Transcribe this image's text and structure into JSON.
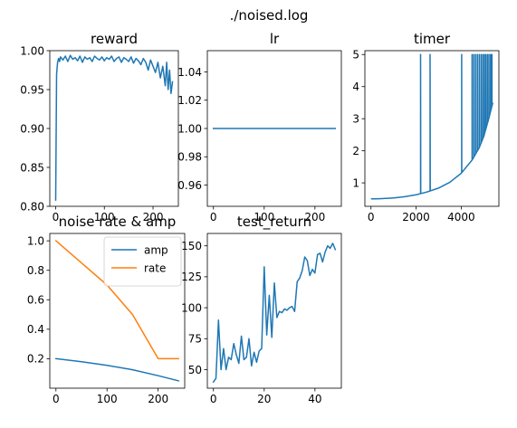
{
  "figure_title": "./noised.log",
  "chart_data": [
    {
      "id": "reward",
      "type": "line",
      "title": "reward",
      "xlim": [
        -12,
        252
      ],
      "ylim": [
        0.8,
        1.0
      ],
      "xticks": [
        0,
        100,
        200
      ],
      "yticks": [
        0.8,
        0.85,
        0.9,
        0.95,
        1.0
      ],
      "ytick_labels": [
        "0.80",
        "0.85",
        "0.90",
        "0.95",
        "1.00"
      ],
      "series": [
        {
          "color": "#1f77b4",
          "x": [
            0,
            2,
            4,
            6,
            8,
            10,
            15,
            20,
            25,
            30,
            35,
            40,
            45,
            50,
            55,
            60,
            65,
            70,
            75,
            80,
            85,
            90,
            95,
            100,
            105,
            110,
            115,
            120,
            125,
            130,
            135,
            140,
            145,
            150,
            155,
            160,
            165,
            170,
            175,
            180,
            185,
            190,
            195,
            200,
            205,
            210,
            215,
            220,
            225,
            228,
            231,
            234,
            237,
            240
          ],
          "y": [
            0.808,
            0.97,
            0.985,
            0.99,
            0.986,
            0.992,
            0.988,
            0.993,
            0.986,
            0.994,
            0.989,
            0.991,
            0.987,
            0.993,
            0.985,
            0.992,
            0.989,
            0.991,
            0.986,
            0.993,
            0.99,
            0.988,
            0.992,
            0.987,
            0.991,
            0.989,
            0.993,
            0.986,
            0.99,
            0.992,
            0.985,
            0.991,
            0.989,
            0.986,
            0.992,
            0.984,
            0.99,
            0.987,
            0.982,
            0.99,
            0.985,
            0.975,
            0.988,
            0.98,
            0.972,
            0.985,
            0.965,
            0.98,
            0.955,
            0.985,
            0.95,
            0.975,
            0.945,
            0.96
          ]
        }
      ]
    },
    {
      "id": "lr",
      "type": "line",
      "title": "lr",
      "xlim": [
        -12,
        252
      ],
      "ylim": [
        0.945,
        1.055
      ],
      "xticks": [
        0,
        100,
        200
      ],
      "yticks": [
        0.96,
        0.98,
        1.0,
        1.02,
        1.04
      ],
      "ytick_labels": [
        "0.96",
        "0.98",
        "1.00",
        "1.02",
        "1.04"
      ],
      "series": [
        {
          "color": "#1f77b4",
          "x": [
            0,
            240
          ],
          "y": [
            1.0,
            1.0
          ]
        }
      ]
    },
    {
      "id": "timer",
      "type": "line",
      "title": "timer",
      "xlim": [
        -270,
        5670
      ],
      "ylim": [
        0.27,
        5.12
      ],
      "xticks": [
        0,
        2000,
        4000
      ],
      "yticks": [
        1,
        2,
        3,
        4,
        5
      ],
      "ytick_labels": [
        "1",
        "2",
        "3",
        "4",
        "5"
      ],
      "curve_points": [
        [
          0,
          0.5
        ],
        [
          500,
          0.51
        ],
        [
          1000,
          0.53
        ],
        [
          1500,
          0.57
        ],
        [
          2000,
          0.63
        ],
        [
          2500,
          0.72
        ],
        [
          3000,
          0.84
        ],
        [
          3500,
          1.02
        ],
        [
          4000,
          1.3
        ],
        [
          4500,
          1.73
        ],
        [
          4800,
          2.1
        ],
        [
          5000,
          2.45
        ],
        [
          5200,
          2.95
        ],
        [
          5400,
          3.5
        ]
      ],
      "spikes": [
        2200,
        2620,
        4020,
        4480,
        4560,
        4640,
        4720,
        4800,
        4880,
        4950,
        5020,
        5090,
        5160,
        5230,
        5300,
        5360
      ],
      "spike_value": 5.0,
      "color": "#1f77b4"
    },
    {
      "id": "noise",
      "type": "line",
      "title": "noise rate & amp",
      "xlim": [
        -12,
        252
      ],
      "ylim": [
        0.0,
        1.05
      ],
      "xticks": [
        0,
        100,
        200
      ],
      "yticks": [
        0.2,
        0.4,
        0.6,
        0.8,
        1.0
      ],
      "ytick_labels": [
        "0.2",
        "0.4",
        "0.6",
        "0.8",
        "1.0"
      ],
      "legend_position": "top-right",
      "series": [
        {
          "name": "amp",
          "color": "#1f77b4",
          "x": [
            0,
            50,
            100,
            150,
            200,
            240
          ],
          "y": [
            0.2,
            0.18,
            0.155,
            0.125,
            0.085,
            0.05
          ]
        },
        {
          "name": "rate",
          "color": "#ff7f0e",
          "x": [
            0,
            50,
            100,
            150,
            200,
            240
          ],
          "y": [
            1.0,
            0.85,
            0.7,
            0.5,
            0.2,
            0.2
          ]
        }
      ]
    },
    {
      "id": "test_return",
      "type": "line",
      "title": "test_return",
      "xlim": [
        -2.4,
        50.4
      ],
      "ylim": [
        35,
        160
      ],
      "xticks": [
        0,
        20,
        40
      ],
      "yticks": [
        50,
        75,
        100,
        125,
        150
      ],
      "ytick_labels": [
        "50",
        "75",
        "100",
        "125",
        "150"
      ],
      "series": [
        {
          "color": "#1f77b4",
          "x": [
            0,
            1,
            2,
            3,
            4,
            5,
            6,
            7,
            8,
            9,
            10,
            11,
            12,
            13,
            14,
            15,
            16,
            17,
            18,
            19,
            20,
            21,
            22,
            23,
            24,
            25,
            26,
            27,
            28,
            29,
            30,
            31,
            32,
            33,
            34,
            35,
            36,
            37,
            38,
            39,
            40,
            41,
            42,
            43,
            44,
            45,
            46,
            47,
            48
          ],
          "y": [
            40,
            43,
            90,
            50,
            67,
            50,
            60,
            58,
            71,
            62,
            55,
            77,
            58,
            60,
            75,
            53,
            64,
            56,
            65,
            67,
            133,
            78,
            110,
            76,
            120,
            92,
            97,
            96,
            99,
            98,
            100,
            101,
            97,
            121,
            124,
            130,
            141,
            138,
            126,
            131,
            128,
            143,
            144,
            137,
            145,
            150,
            148,
            152,
            147
          ]
        }
      ]
    }
  ]
}
